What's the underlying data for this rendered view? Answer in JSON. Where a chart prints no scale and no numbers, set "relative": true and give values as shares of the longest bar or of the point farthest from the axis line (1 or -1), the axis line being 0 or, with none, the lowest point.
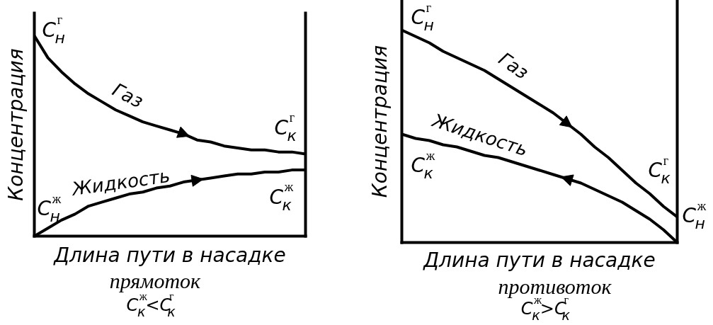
{
  "chart_data": [
    {
      "type": "line",
      "relative": true,
      "xlabel": "Длина пути в насадке",
      "ylabel": "Концентрация",
      "categories": [
        null,
        null,
        null,
        null,
        null,
        null,
        null,
        null,
        null,
        null,
        null,
        null,
        null,
        null,
        null,
        null,
        null,
        null,
        null,
        null,
        null
      ],
      "series": [
        {
          "name": "Газ",
          "color": "#000000",
          "values": [
            1,
            0.89,
            0.82,
            0.76,
            0.71,
            0.67,
            0.63,
            0.6,
            0.57,
            0.55,
            0.53,
            0.51,
            0.48,
            0.47,
            0.45,
            0.44,
            0.43,
            0.43,
            0.42,
            0.42,
            0.41
          ]
        },
        {
          "name": "Жидкость",
          "color": "#000000",
          "values": [
            0,
            0.04,
            0.08,
            0.11,
            0.15,
            0.17,
            0.19,
            0.21,
            0.22,
            0.24,
            0.25,
            0.27,
            0.28,
            0.29,
            0.3,
            0.31,
            0.31,
            0.32,
            0.32,
            0.33,
            0.33
          ]
        }
      ],
      "annotations": [
        "C$_{н}$$^{г}$",
        "C$_{к}$$^{г}$",
        "C$_{н}$$^{ж}$",
        "C$_{к}$$^{ж}$",
        "прямоток",
        "C$_{к}$$^{ж}$<C$_{к}$$^{г}$"
      ]
    },
    {
      "type": "line",
      "relative": true,
      "xlabel": "Длина пути в насадке",
      "ylabel": "Концентрация",
      "categories": [
        null,
        null,
        null,
        null,
        null,
        null,
        null,
        null,
        null,
        null,
        null,
        null,
        null,
        null,
        null,
        null,
        null,
        null,
        null,
        null,
        null
      ],
      "series": [
        {
          "name": "Газ",
          "color": "#000000",
          "values": [
            1,
            0.97,
            0.94,
            0.9,
            0.87,
            0.84,
            0.81,
            0.77,
            0.73,
            0.69,
            0.65,
            0.61,
            0.56,
            0.51,
            0.45,
            0.4,
            0.34,
            0.28,
            0.23,
            0.17,
            0.12
          ]
        },
        {
          "name": "Жидкость",
          "color": "#000000",
          "values": [
            0.51,
            0.49,
            0.48,
            0.46,
            0.45,
            0.43,
            0.41,
            0.4,
            0.38,
            0.36,
            0.34,
            0.32,
            0.3,
            0.28,
            0.25,
            0.22,
            0.19,
            0.15,
            0.11,
            0.06,
            0
          ]
        }
      ],
      "annotations": [
        "C$_{н}$$^{г}$",
        "C$_{к}$$^{г}$",
        "C$_{к}$$^{ж}$",
        "C$_{н}$$^{ж}$",
        "противоток",
        "C$_{к}$$^{ж}$>C$_{к}$$^{г}$"
      ]
    }
  ]
}
